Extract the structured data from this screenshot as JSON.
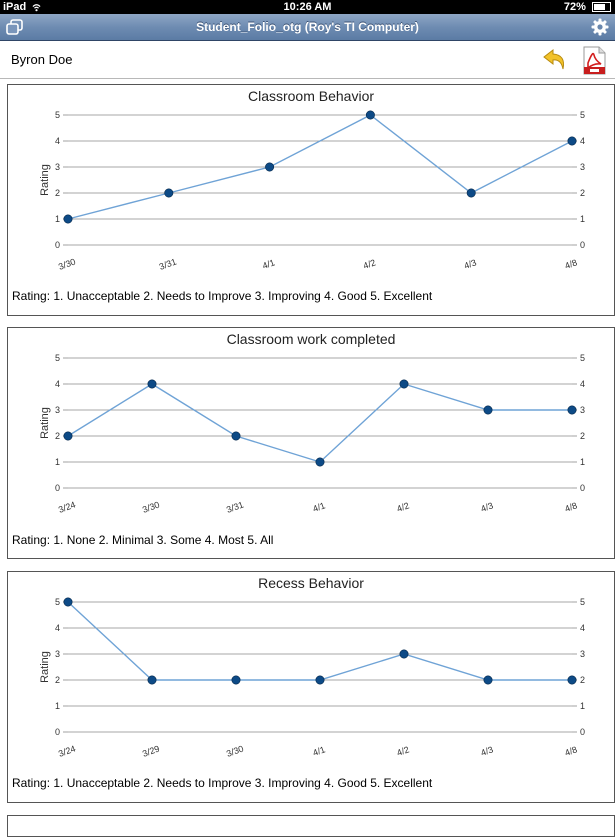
{
  "status_bar": {
    "device": "iPad",
    "time": "10:26 AM",
    "battery": "72%",
    "battery_level": 0.72
  },
  "nav": {
    "title": "Student_Folio_otg (Roy's TI Computer)"
  },
  "student": {
    "name": "Byron Doe"
  },
  "icons": {
    "left_button": "windows-icon",
    "right_button": "gear-icon",
    "undo": "undo-arrow-icon",
    "pdf": "pdf-icon"
  },
  "colors": {
    "line": "#6fa3d6",
    "marker": "#0d4a86",
    "grid": "#8a8a8a"
  },
  "charts": [
    {
      "title": "Classroom Behavior",
      "legend": "Rating: 1. Unacceptable  2. Needs to Improve  3. Improving  4. Good  5. Excellent",
      "chart_data": {
        "type": "line",
        "title": "Classroom Behavior",
        "categories": [
          "3/30",
          "3/31",
          "4/1",
          "4/2",
          "4/3",
          "4/8"
        ],
        "values": [
          1,
          2,
          3,
          5,
          2,
          4
        ],
        "xlabel": "",
        "ylabel": "Rating",
        "ylim": [
          0,
          5
        ],
        "yticks": [
          "0",
          "1",
          "2",
          "3",
          "4",
          "5"
        ],
        "grid": true
      }
    },
    {
      "title": "Classroom work completed",
      "legend": "Rating: 1. None  2. Minimal  3. Some  4. Most  5. All",
      "chart_data": {
        "type": "line",
        "title": "Classroom work completed",
        "categories": [
          "3/24",
          "3/30",
          "3/31",
          "4/1",
          "4/2",
          "4/3",
          "4/8"
        ],
        "values": [
          2,
          4,
          2,
          1,
          4,
          3,
          3
        ],
        "xlabel": "",
        "ylabel": "Rating",
        "ylim": [
          0,
          5
        ],
        "yticks": [
          "0",
          "1",
          "2",
          "3",
          "4",
          "5"
        ],
        "grid": true
      }
    },
    {
      "title": "Recess Behavior",
      "legend": "Rating: 1. Unacceptable  2. Needs to Improve  3. Improving  4. Good  5. Excellent",
      "chart_data": {
        "type": "line",
        "title": "Recess Behavior",
        "categories": [
          "3/24",
          "3/29",
          "3/30",
          "4/1",
          "4/2",
          "4/3",
          "4/8"
        ],
        "values": [
          5,
          2,
          2,
          2,
          3,
          2,
          2
        ],
        "xlabel": "",
        "ylabel": "Rating",
        "ylim": [
          0,
          5
        ],
        "yticks": [
          "0",
          "1",
          "2",
          "3",
          "4",
          "5"
        ],
        "grid": true
      }
    }
  ]
}
